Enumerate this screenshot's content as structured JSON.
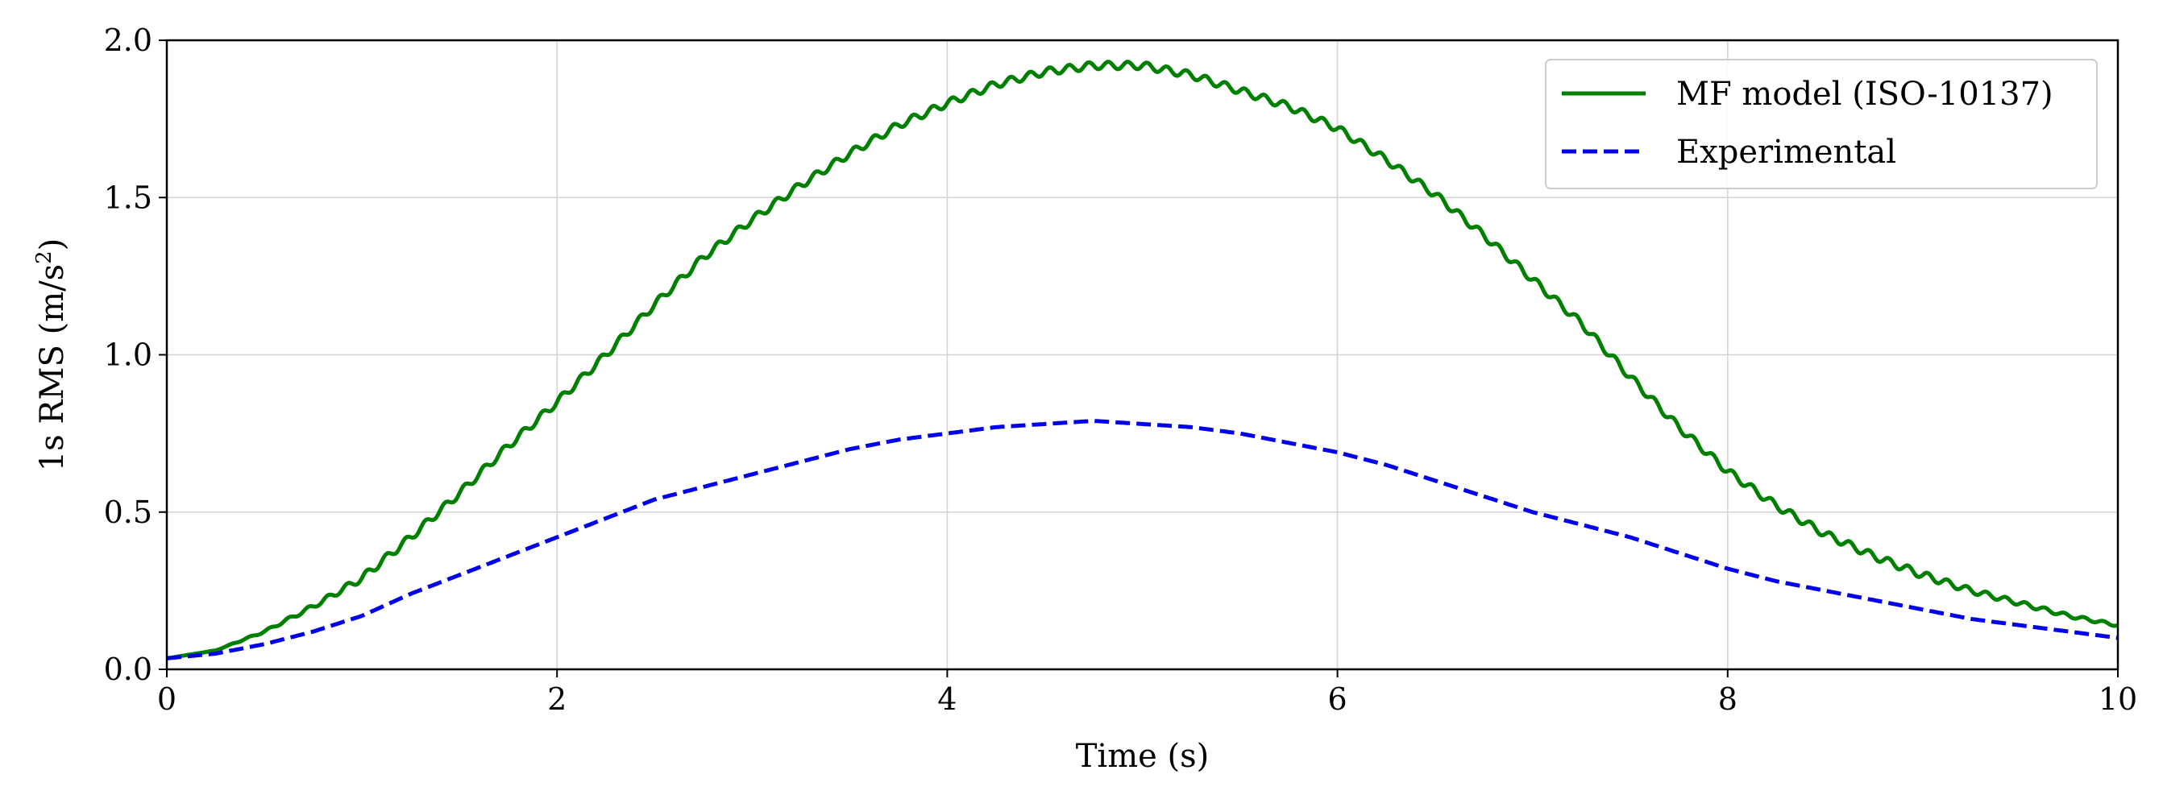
{
  "chart_data": {
    "type": "line",
    "title": "",
    "xlabel": "Time (s)",
    "ylabel_main": "1s RMS (m/s",
    "ylabel_sup": "2",
    "ylabel_close": ")",
    "xlim": [
      0,
      10
    ],
    "ylim": [
      0,
      2
    ],
    "xticks": [
      0,
      2,
      4,
      6,
      8,
      10
    ],
    "xtick_labels": [
      "0",
      "2",
      "4",
      "6",
      "8",
      "10"
    ],
    "yticks": [
      0,
      0.5,
      1,
      1.5,
      2
    ],
    "ytick_labels": [
      "0.0",
      "0.5",
      "1.0",
      "1.5",
      "2.0"
    ],
    "grid": true,
    "legend_position": "top-right",
    "series": [
      {
        "name": "MF model (ISO-10137)",
        "color": "#008000",
        "style": "solid",
        "ripple_amplitude": 0.012,
        "ripple_period": 0.1,
        "x": [
          0,
          0.25,
          0.5,
          0.75,
          1,
          1.25,
          1.5,
          1.75,
          2,
          2.25,
          2.5,
          2.75,
          3,
          3.25,
          3.5,
          3.75,
          4,
          4.25,
          4.5,
          4.75,
          5,
          5.25,
          5.5,
          5.75,
          6,
          6.25,
          6.5,
          6.75,
          7,
          7.25,
          7.5,
          7.75,
          8,
          8.25,
          8.5,
          8.75,
          9,
          9.25,
          9.5,
          9.75,
          10
        ],
        "y": [
          0.035,
          0.06,
          0.12,
          0.2,
          0.29,
          0.42,
          0.56,
          0.71,
          0.85,
          1.0,
          1.16,
          1.31,
          1.43,
          1.54,
          1.64,
          1.73,
          1.8,
          1.86,
          1.9,
          1.92,
          1.92,
          1.89,
          1.84,
          1.79,
          1.72,
          1.62,
          1.51,
          1.38,
          1.24,
          1.1,
          0.93,
          0.77,
          0.63,
          0.52,
          0.43,
          0.36,
          0.3,
          0.25,
          0.21,
          0.17,
          0.14
        ]
      },
      {
        "name": "Experimental",
        "color": "#0000ee",
        "style": "dashed",
        "x": [
          0,
          0.25,
          0.5,
          0.75,
          1,
          1.25,
          1.5,
          1.75,
          2,
          2.25,
          2.5,
          2.75,
          3,
          3.25,
          3.5,
          3.75,
          4,
          4.25,
          4.5,
          4.75,
          5,
          5.25,
          5.5,
          5.75,
          6,
          6.25,
          6.5,
          6.75,
          7,
          7.25,
          7.5,
          7.75,
          8,
          8.25,
          8.5,
          8.75,
          9,
          9.25,
          9.5,
          9.75,
          10
        ],
        "y": [
          0.035,
          0.05,
          0.08,
          0.12,
          0.17,
          0.24,
          0.3,
          0.36,
          0.42,
          0.48,
          0.54,
          0.58,
          0.62,
          0.66,
          0.7,
          0.73,
          0.75,
          0.77,
          0.78,
          0.79,
          0.78,
          0.77,
          0.75,
          0.72,
          0.69,
          0.65,
          0.6,
          0.55,
          0.5,
          0.46,
          0.42,
          0.37,
          0.32,
          0.28,
          0.25,
          0.22,
          0.19,
          0.16,
          0.14,
          0.12,
          0.1
        ]
      }
    ]
  }
}
